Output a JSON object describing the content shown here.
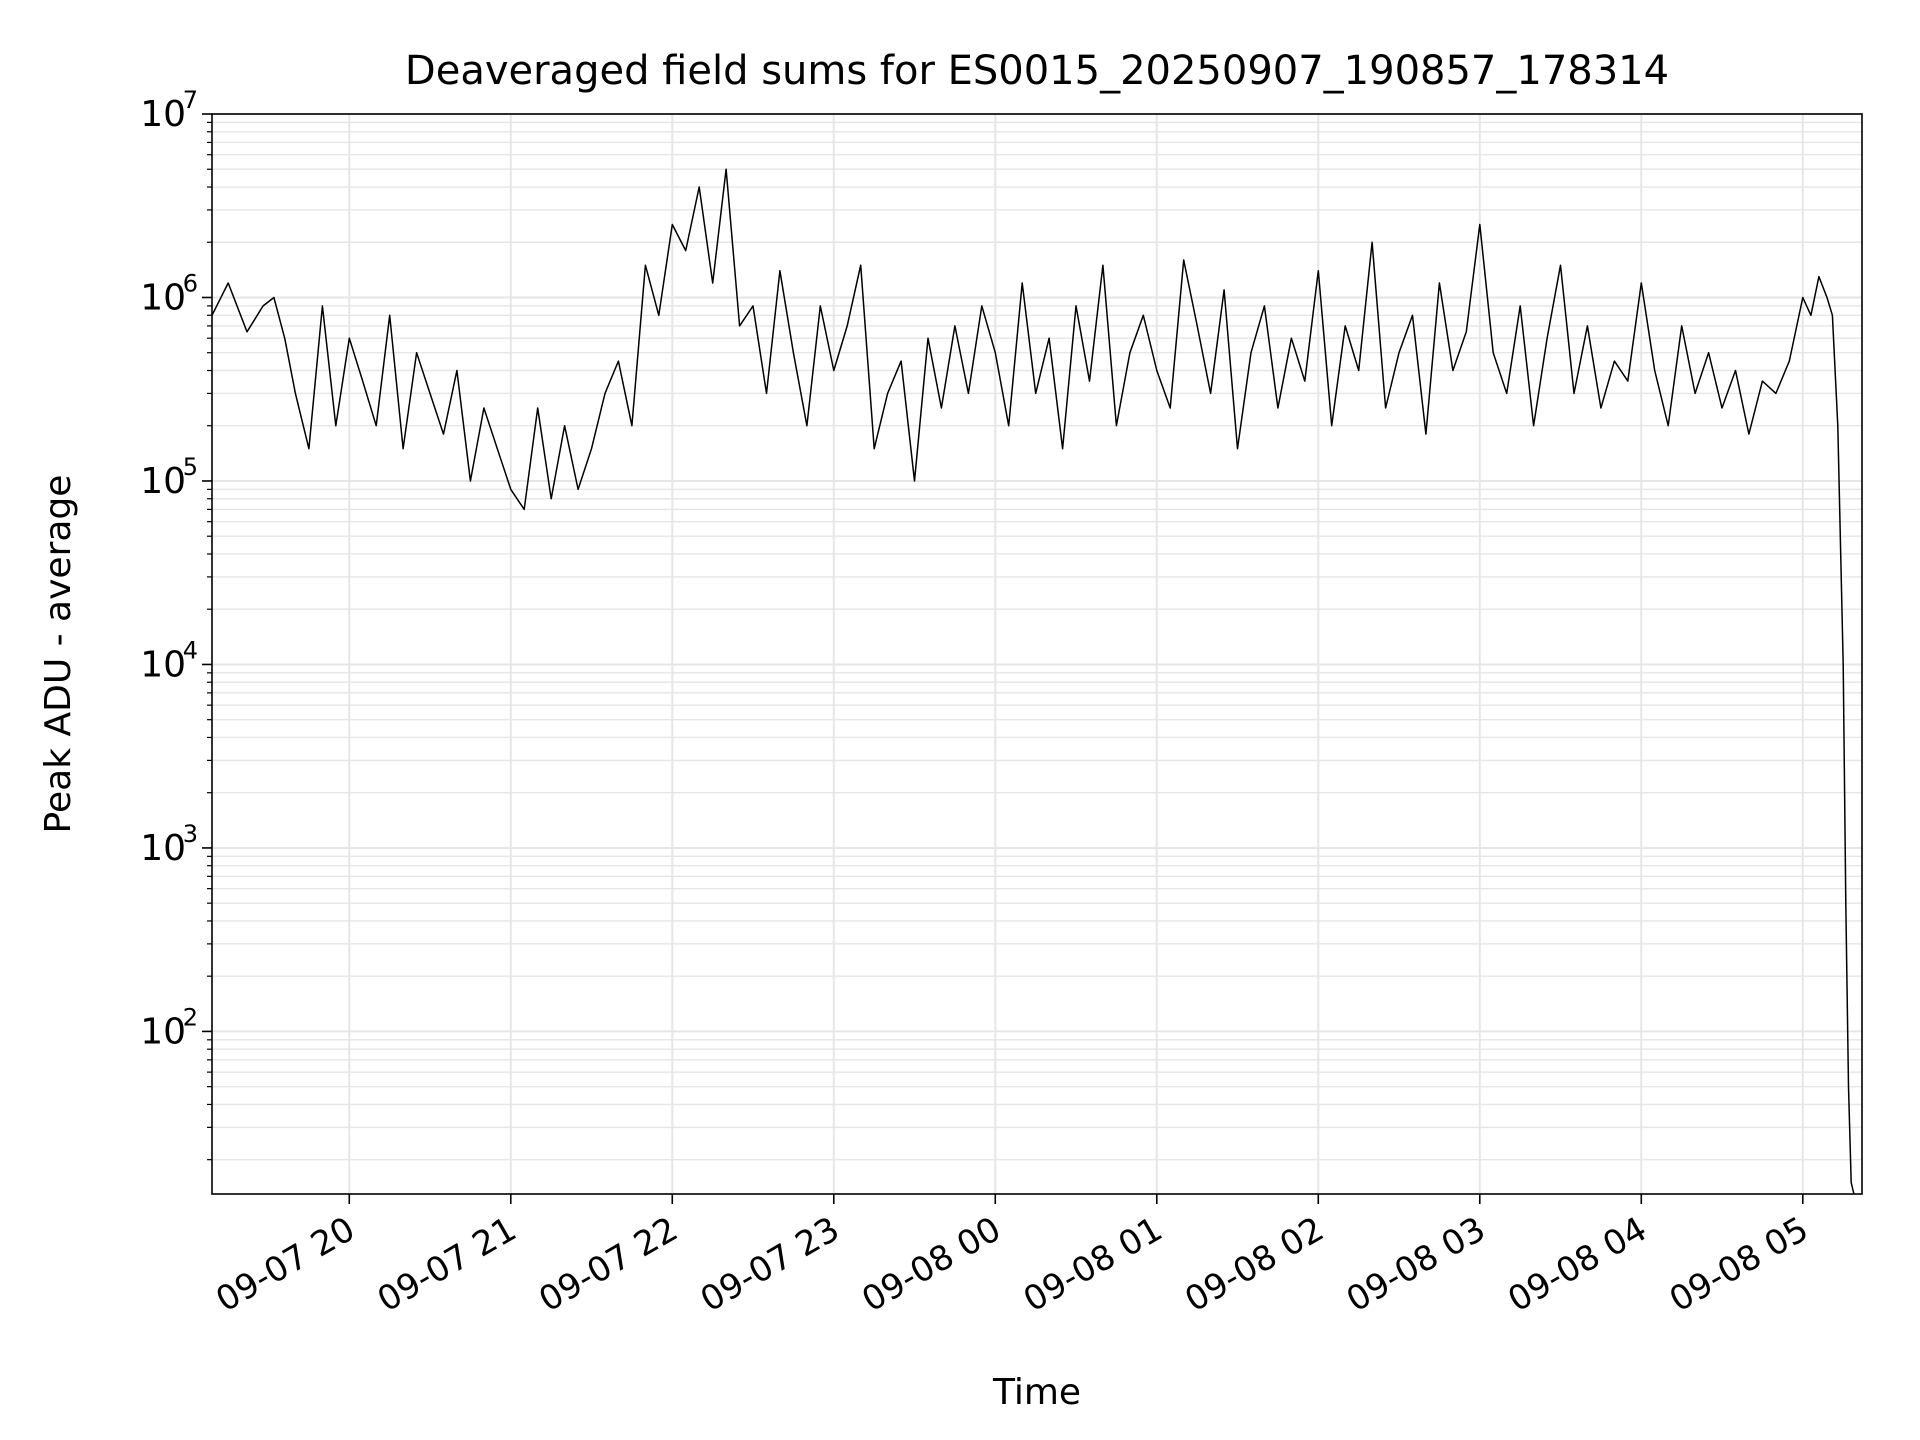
{
  "chart_data": {
    "type": "line",
    "title": "Deaveraged field sums for ES0015_20250907_190857_178314",
    "xlabel": "Time",
    "ylabel": "Peak ADU - average",
    "yscale": "log",
    "ylim": [
      13,
      10000000
    ],
    "xlim": [
      "2025-09-07 19:09",
      "2025-09-08 05:22"
    ],
    "grid": true,
    "line_color": "#000000",
    "grid_color": "#e6e6e6",
    "x_ticks": [
      {
        "value": "2025-09-07 20:00",
        "label": "09-07 20"
      },
      {
        "value": "2025-09-07 21:00",
        "label": "09-07 21"
      },
      {
        "value": "2025-09-07 22:00",
        "label": "09-07 22"
      },
      {
        "value": "2025-09-07 23:00",
        "label": "09-07 23"
      },
      {
        "value": "2025-09-08 00:00",
        "label": "09-08 00"
      },
      {
        "value": "2025-09-08 01:00",
        "label": "09-08 01"
      },
      {
        "value": "2025-09-08 02:00",
        "label": "09-08 02"
      },
      {
        "value": "2025-09-08 03:00",
        "label": "09-08 03"
      },
      {
        "value": "2025-09-08 04:00",
        "label": "09-08 04"
      },
      {
        "value": "2025-09-08 05:00",
        "label": "09-08 05"
      }
    ],
    "y_ticks": [
      {
        "value": 100,
        "base": "10",
        "exp": "2"
      },
      {
        "value": 1000,
        "base": "10",
        "exp": "3"
      },
      {
        "value": 10000,
        "base": "10",
        "exp": "4"
      },
      {
        "value": 100000,
        "base": "10",
        "exp": "5"
      },
      {
        "value": 1000000,
        "base": "10",
        "exp": "6"
      },
      {
        "value": 10000000,
        "base": "10",
        "exp": "7"
      }
    ],
    "series": [
      {
        "x": [
          "2025-09-07 19:09",
          "2025-09-07 19:15",
          "2025-09-07 19:22",
          "2025-09-07 19:28",
          "2025-09-07 19:32",
          "2025-09-07 19:36",
          "2025-09-07 19:40",
          "2025-09-07 19:45",
          "2025-09-07 19:50",
          "2025-09-07 19:55",
          "2025-09-07 20:00",
          "2025-09-07 20:05",
          "2025-09-07 20:10",
          "2025-09-07 20:15",
          "2025-09-07 20:20",
          "2025-09-07 20:25",
          "2025-09-07 20:30",
          "2025-09-07 20:35",
          "2025-09-07 20:40",
          "2025-09-07 20:45",
          "2025-09-07 20:50",
          "2025-09-07 20:55",
          "2025-09-07 21:00",
          "2025-09-07 21:05",
          "2025-09-07 21:10",
          "2025-09-07 21:15",
          "2025-09-07 21:20",
          "2025-09-07 21:25",
          "2025-09-07 21:30",
          "2025-09-07 21:35",
          "2025-09-07 21:40",
          "2025-09-07 21:45",
          "2025-09-07 21:50",
          "2025-09-07 21:55",
          "2025-09-07 22:00",
          "2025-09-07 22:05",
          "2025-09-07 22:10",
          "2025-09-07 22:15",
          "2025-09-07 22:20",
          "2025-09-07 22:25",
          "2025-09-07 22:30",
          "2025-09-07 22:35",
          "2025-09-07 22:40",
          "2025-09-07 22:45",
          "2025-09-07 22:50",
          "2025-09-07 22:55",
          "2025-09-07 23:00",
          "2025-09-07 23:05",
          "2025-09-07 23:10",
          "2025-09-07 23:15",
          "2025-09-07 23:20",
          "2025-09-07 23:25",
          "2025-09-07 23:30",
          "2025-09-07 23:35",
          "2025-09-07 23:40",
          "2025-09-07 23:45",
          "2025-09-07 23:50",
          "2025-09-07 23:55",
          "2025-09-08 00:00",
          "2025-09-08 00:05",
          "2025-09-08 00:10",
          "2025-09-08 00:15",
          "2025-09-08 00:20",
          "2025-09-08 00:25",
          "2025-09-08 00:30",
          "2025-09-08 00:35",
          "2025-09-08 00:40",
          "2025-09-08 00:45",
          "2025-09-08 00:50",
          "2025-09-08 00:55",
          "2025-09-08 01:00",
          "2025-09-08 01:05",
          "2025-09-08 01:10",
          "2025-09-08 01:15",
          "2025-09-08 01:20",
          "2025-09-08 01:25",
          "2025-09-08 01:30",
          "2025-09-08 01:35",
          "2025-09-08 01:40",
          "2025-09-08 01:45",
          "2025-09-08 01:50",
          "2025-09-08 01:55",
          "2025-09-08 02:00",
          "2025-09-08 02:05",
          "2025-09-08 02:10",
          "2025-09-08 02:15",
          "2025-09-08 02:20",
          "2025-09-08 02:25",
          "2025-09-08 02:30",
          "2025-09-08 02:35",
          "2025-09-08 02:40",
          "2025-09-08 02:45",
          "2025-09-08 02:50",
          "2025-09-08 02:55",
          "2025-09-08 03:00",
          "2025-09-08 03:05",
          "2025-09-08 03:10",
          "2025-09-08 03:15",
          "2025-09-08 03:20",
          "2025-09-08 03:25",
          "2025-09-08 03:30",
          "2025-09-08 03:35",
          "2025-09-08 03:40",
          "2025-09-08 03:45",
          "2025-09-08 03:50",
          "2025-09-08 03:55",
          "2025-09-08 04:00",
          "2025-09-08 04:05",
          "2025-09-08 04:10",
          "2025-09-08 04:15",
          "2025-09-08 04:20",
          "2025-09-08 04:25",
          "2025-09-08 04:30",
          "2025-09-08 04:35",
          "2025-09-08 04:40",
          "2025-09-08 04:45",
          "2025-09-08 04:50",
          "2025-09-08 04:55",
          "2025-09-08 05:00",
          "2025-09-08 05:03",
          "2025-09-08 05:06",
          "2025-09-08 05:09",
          "2025-09-08 05:11",
          "2025-09-08 05:13",
          "2025-09-08 05:15",
          "2025-09-08 05:16",
          "2025-09-08 05:17",
          "2025-09-08 05:18",
          "2025-09-08 05:19"
        ],
        "values": [
          800000,
          1200000,
          650000,
          900000,
          1000000,
          600000,
          300000,
          150000,
          900000,
          200000,
          600000,
          350000,
          200000,
          800000,
          150000,
          500000,
          300000,
          180000,
          400000,
          100000,
          250000,
          150000,
          90000,
          70000,
          250000,
          80000,
          200000,
          90000,
          150000,
          300000,
          450000,
          200000,
          1500000,
          800000,
          2500000,
          1800000,
          4000000,
          1200000,
          5000000,
          700000,
          900000,
          300000,
          1400000,
          500000,
          200000,
          900000,
          400000,
          700000,
          1500000,
          150000,
          300000,
          450000,
          100000,
          600000,
          250000,
          700000,
          300000,
          900000,
          500000,
          200000,
          1200000,
          300000,
          600000,
          150000,
          900000,
          350000,
          1500000,
          200000,
          500000,
          800000,
          400000,
          250000,
          1600000,
          700000,
          300000,
          1100000,
          150000,
          500000,
          900000,
          250000,
          600000,
          350000,
          1400000,
          200000,
          700000,
          400000,
          2000000,
          250000,
          500000,
          800000,
          180000,
          1200000,
          400000,
          650000,
          2500000,
          500000,
          300000,
          900000,
          200000,
          600000,
          1500000,
          300000,
          700000,
          250000,
          450000,
          350000,
          1200000,
          400000,
          200000,
          700000,
          300000,
          500000,
          250000,
          400000,
          180000,
          350000,
          300000,
          450000,
          1000000,
          800000,
          1300000,
          1000000,
          800000,
          200000,
          10000,
          500,
          50,
          15,
          13
        ]
      }
    ]
  }
}
